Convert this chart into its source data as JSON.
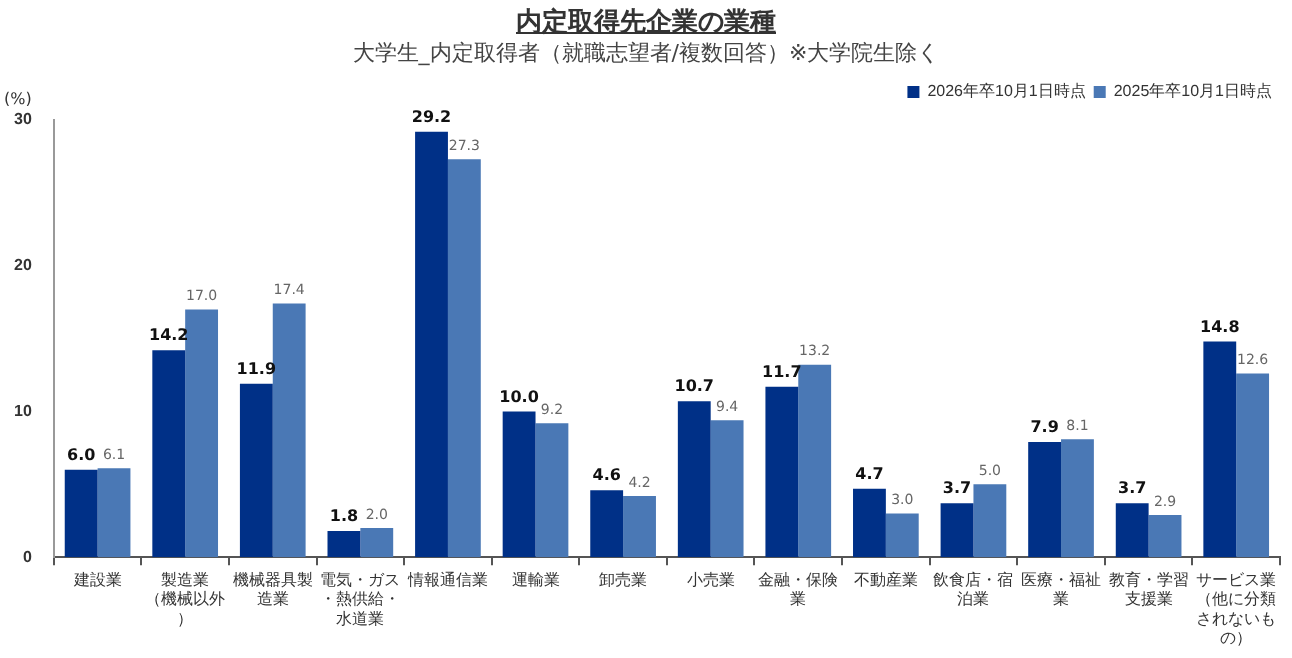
{
  "chart_data": {
    "type": "bar",
    "title": "内定取得先企業の業種",
    "subtitle": "大学生_内定取得者（就職志望者/複数回答）※大学院生除く",
    "ylabel": "(%)",
    "categories": [
      "建設業",
      "製造業（機械以外）",
      "機械器具製造業",
      "電気・ガス・熱供給・水道業",
      "情報通信業",
      "運輸業",
      "卸売業",
      "小売業",
      "金融・保険業",
      "不動産業",
      "飲食店・宿泊業",
      "医療・福祉業",
      "教育・学習支援業",
      "サービス業（他に分類されないもの）"
    ],
    "series": [
      {
        "name": "2026年卒10月1日時点",
        "color": "#003087",
        "values": [
          6.0,
          14.2,
          11.9,
          1.8,
          29.2,
          10.0,
          4.6,
          10.7,
          11.7,
          4.7,
          3.7,
          7.9,
          3.7,
          14.8
        ],
        "value_labels": [
          "6.0",
          "14.2",
          "11.9",
          "1.8",
          "29.2",
          "10.0",
          "4.6",
          "10.7",
          "11.7",
          "4.7",
          "3.7",
          "7.9",
          "3.7",
          "14.8"
        ]
      },
      {
        "name": "2025年卒10月1日時点",
        "color": "#4a78b5",
        "values": [
          6.1,
          17.0,
          17.4,
          2.0,
          27.3,
          9.2,
          4.2,
          9.4,
          13.2,
          3.0,
          5.0,
          8.1,
          2.9,
          12.6
        ],
        "value_labels": [
          "6.1",
          "17.0",
          "17.4",
          "2.0",
          "27.3",
          "9.2",
          "4.2",
          "9.4",
          "13.2",
          "3.0",
          "5.0",
          "8.1",
          "2.9",
          "12.6"
        ]
      }
    ],
    "ylim": [
      0,
      30
    ],
    "yticks": [
      0,
      10,
      20,
      30
    ],
    "legend": "top right"
  }
}
